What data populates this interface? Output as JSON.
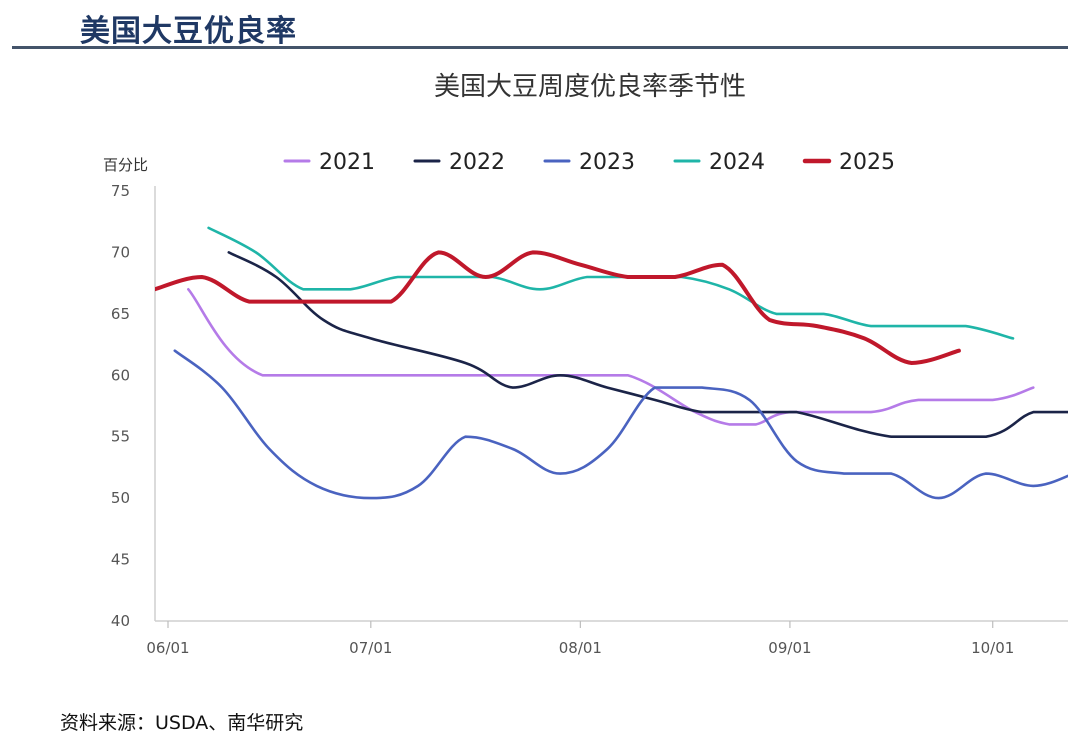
{
  "header": {
    "title": "美国大豆优良率"
  },
  "source": "资料来源：USDA、南华研究",
  "chart_data": {
    "type": "line",
    "title": "美国大豆周度优良率季节性",
    "ylabel": "百分比",
    "xlabel": "",
    "ylim": [
      40,
      75
    ],
    "yticks": [
      40,
      45,
      50,
      55,
      60,
      65,
      70,
      75
    ],
    "xlim": [
      0,
      129
    ],
    "xtick_positions": [
      0,
      30,
      61,
      92,
      122
    ],
    "xtick_labels": [
      "06/01",
      "07/01",
      "08/01",
      "09/01",
      "10/01"
    ],
    "legend_position": "top",
    "series": [
      {
        "name": "2021",
        "color": "#b57be8",
        "x": [
          3,
          14,
          36,
          46,
          58,
          68,
          78,
          83,
          87,
          92,
          104,
          111,
          122,
          128
        ],
        "y": [
          67,
          60,
          60,
          60,
          60,
          60,
          57,
          56,
          56,
          57,
          57,
          58,
          58,
          59
        ]
      },
      {
        "name": "2022",
        "color": "#1b2448",
        "x": [
          9,
          16,
          23,
          30,
          44,
          51,
          58,
          65,
          72,
          79,
          86,
          93,
          107,
          121,
          128,
          134
        ],
        "y": [
          70,
          68,
          64.5,
          63,
          61,
          59,
          60,
          59,
          58,
          57,
          57,
          57,
          55,
          55,
          57,
          57
        ]
      },
      {
        "name": "2023",
        "color": "#4a63c0",
        "x": [
          1,
          8,
          15,
          22,
          30,
          37,
          44,
          51,
          58,
          65,
          72,
          79,
          86,
          93,
          100,
          107,
          114,
          121,
          128,
          134
        ],
        "y": [
          62,
          59,
          54,
          51,
          50,
          51,
          55,
          54,
          52,
          54,
          59,
          59,
          58,
          53,
          52,
          52,
          50,
          52,
          51,
          52
        ]
      },
      {
        "name": "2024",
        "color": "#1fb5a8",
        "x": [
          6,
          13,
          20,
          27,
          34,
          41,
          48,
          55,
          62,
          69,
          76,
          83,
          90,
          97,
          104,
          111,
          118,
          125
        ],
        "y": [
          72,
          70,
          67,
          67,
          68,
          68,
          68,
          67,
          68,
          68,
          68,
          67,
          65,
          65,
          64,
          64,
          64,
          63
        ]
      },
      {
        "name": "2025",
        "color": "#c0182b",
        "x": [
          -2,
          5,
          12,
          19,
          26,
          33,
          40,
          47,
          54,
          61,
          68,
          75,
          82,
          89,
          96,
          103,
          110,
          117
        ],
        "y": [
          67,
          68,
          66,
          66,
          66,
          66,
          70,
          68,
          70,
          69,
          68,
          68,
          69,
          64.5,
          64,
          63,
          61,
          62
        ]
      }
    ]
  }
}
